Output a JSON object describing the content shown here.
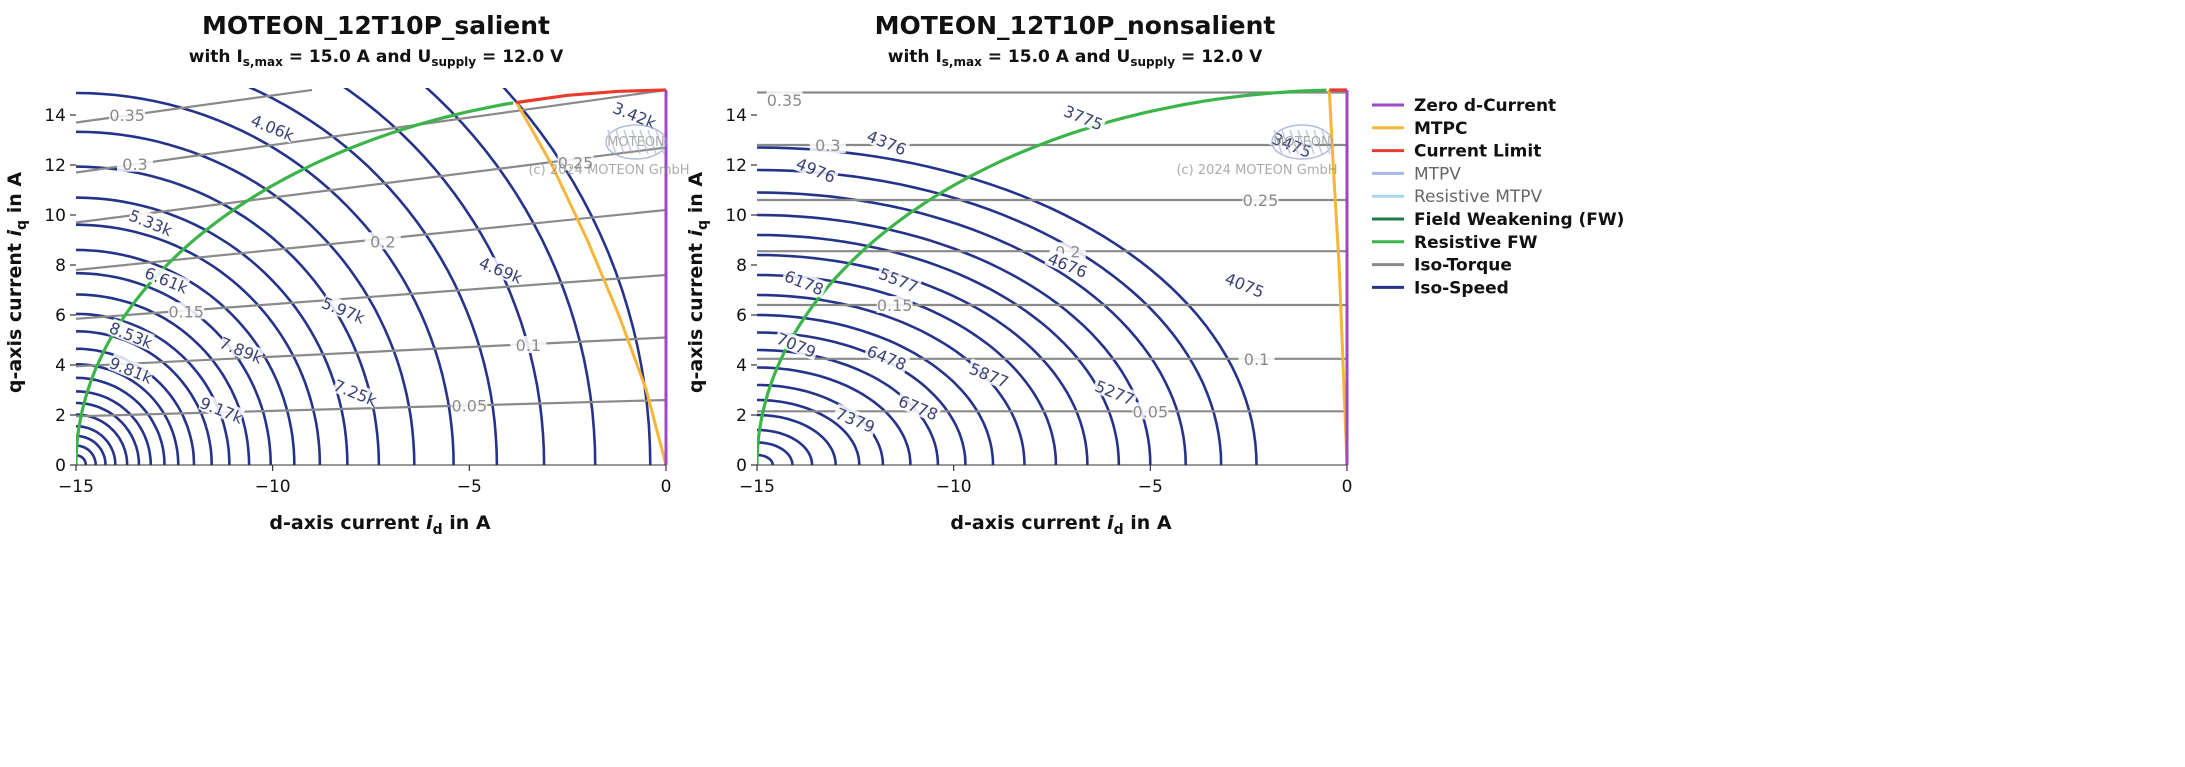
{
  "chart_data": [
    {
      "type": "line",
      "title": "MOTEON_12T10P_salient",
      "subtitle": {
        "pre": "with I",
        "sub1": "s,max",
        "mid": " = 15.0 A and U",
        "sub2": "supply",
        "post": " = 12.0 V"
      },
      "xlabel": {
        "pre": "d-axis current ",
        "var": "i",
        "sub": "d",
        "post": " in A"
      },
      "ylabel": {
        "pre": "q-axis current ",
        "var": "i",
        "sub": "q",
        "post": " in A"
      },
      "xlim": [
        -15,
        0
      ],
      "ylim": [
        0,
        15
      ],
      "xticks": [
        -15,
        -10,
        -5,
        0
      ],
      "xtick_labels": [
        "−15",
        "−10",
        "−5",
        "0"
      ],
      "yticks": [
        0,
        2,
        4,
        6,
        8,
        10,
        12,
        14
      ],
      "watermark": {
        "logo": "MOTEON",
        "copyright": "(c) 2024 MOTEON GmbH"
      },
      "iso_torque": [
        {
          "label": "0.05",
          "points": [
            [
              -15,
              1.95
            ],
            [
              0,
              2.6
            ]
          ],
          "label_at": [
            -5,
            2.38
          ]
        },
        {
          "label": "0.1",
          "points": [
            [
              -15,
              3.95
            ],
            [
              0,
              5.1
            ]
          ],
          "label_at": [
            -3.5,
            4.8
          ]
        },
        {
          "label": "0.15",
          "points": [
            [
              -15,
              5.85
            ],
            [
              0,
              7.6
            ]
          ],
          "label_at": [
            -12.2,
            6.15
          ]
        },
        {
          "label": "0.2",
          "points": [
            [
              -15,
              7.8
            ],
            [
              0,
              10.2
            ]
          ],
          "label_at": [
            -7.2,
            8.95
          ]
        },
        {
          "label": "0.25",
          "points": [
            [
              -15,
              9.7
            ],
            [
              0,
              12.7
            ]
          ],
          "label_at": [
            -2.3,
            12.1
          ]
        },
        {
          "label": "0.3",
          "points": [
            [
              -15,
              11.7
            ],
            [
              0,
              15.0
            ]
          ],
          "label_at": [
            -13.5,
            12.05
          ]
        },
        {
          "label": "0.35",
          "points": [
            [
              -15,
              13.7
            ],
            [
              -9,
              15.0
            ]
          ],
          "label_at": [
            -13.7,
            14.0
          ]
        }
      ],
      "iso_speed": {
        "center_d": -15.0,
        "radii_at_zero_iq": [
          0.25,
          0.5,
          0.75,
          1.0,
          1.3,
          1.6,
          1.9,
          2.25,
          2.6,
          3.0,
          3.45,
          3.9,
          4.4,
          4.95,
          5.55,
          6.2,
          6.9,
          7.7,
          8.6,
          9.6,
          10.7,
          11.9,
          13.2,
          14.6
        ],
        "axis_ratio": 1.55,
        "labels": [
          {
            "text": "9.81k",
            "at": [
              -13.6,
              3.8
            ]
          },
          {
            "text": "9.17k",
            "at": [
              -11.3,
              2.2
            ]
          },
          {
            "text": "8.53k",
            "at": [
              -13.6,
              5.2
            ]
          },
          {
            "text": "7.89k",
            "at": [
              -10.8,
              4.6
            ]
          },
          {
            "text": "7.25k",
            "at": [
              -7.9,
              2.9
            ]
          },
          {
            "text": "6.61k",
            "at": [
              -12.7,
              7.4
            ]
          },
          {
            "text": "5.97k",
            "at": [
              -8.2,
              6.2
            ]
          },
          {
            "text": "5.33k",
            "at": [
              -13.1,
              9.7
            ]
          },
          {
            "text": "4.69k",
            "at": [
              -4.2,
              7.8
            ]
          },
          {
            "text": "4.06k",
            "at": [
              -10.0,
              13.5
            ]
          },
          {
            "text": "3.42k",
            "at": [
              -0.8,
              14.0
            ]
          }
        ]
      },
      "curves": {
        "zero_d_current": {
          "points": [
            [
              0,
              0
            ],
            [
              0,
              15
            ]
          ]
        },
        "mtpc": {
          "points": [
            [
              0,
              0
            ],
            [
              -0.5,
              3.0
            ],
            [
              -1.2,
              6.0
            ],
            [
              -2.0,
              9.0
            ],
            [
              -2.9,
              12.0
            ],
            [
              -3.8,
              14.5
            ]
          ]
        },
        "current_limit": {
          "points": [
            [
              -3.8,
              14.5
            ],
            [
              -2.5,
              14.79
            ],
            [
              -1.2,
              14.95
            ],
            [
              0,
              15.0
            ]
          ]
        },
        "resistive_fw": {
          "radius": 15.0,
          "from_deg": 0,
          "to_deg": 75.3
        }
      }
    },
    {
      "type": "line",
      "title": "MOTEON_12T10P_nonsalient",
      "subtitle": {
        "pre": "with I",
        "sub1": "s,max",
        "mid": " = 15.0 A and U",
        "sub2": "supply",
        "post": " = 12.0 V"
      },
      "xlabel": {
        "pre": "d-axis current ",
        "var": "i",
        "sub": "d",
        "post": " in A"
      },
      "ylabel": {
        "pre": "q-axis current ",
        "var": "i",
        "sub": "q",
        "post": " in A"
      },
      "xlim": [
        -15,
        0
      ],
      "ylim": [
        0,
        15
      ],
      "xticks": [
        -15,
        -10,
        -5,
        0
      ],
      "xtick_labels": [
        "−15",
        "−10",
        "−5",
        "0"
      ],
      "yticks": [
        0,
        2,
        4,
        6,
        8,
        10,
        12,
        14
      ],
      "watermark": {
        "logo": "MOTEON",
        "copyright": "(c) 2024 MOTEON GmbH"
      },
      "iso_torque": [
        {
          "label": "0.05",
          "y": 2.15,
          "label_at": [
            -5.0,
            2.15
          ]
        },
        {
          "label": "0.1",
          "y": 4.25,
          "label_at": [
            -2.3,
            4.25
          ]
        },
        {
          "label": "0.15",
          "y": 6.4,
          "label_at": [
            -11.5,
            6.4
          ]
        },
        {
          "label": "0.2",
          "y": 8.55,
          "label_at": [
            -7.1,
            8.55
          ]
        },
        {
          "label": "0.25",
          "y": 10.6,
          "label_at": [
            -2.2,
            10.6
          ]
        },
        {
          "label": "0.3",
          "y": 12.8,
          "label_at": [
            -13.2,
            12.8
          ]
        },
        {
          "label": "0.35",
          "y": 14.9,
          "label_at": [
            -14.3,
            14.6
          ]
        }
      ],
      "iso_speed": {
        "center_d": -15.0,
        "radii_at_zero_iq": [
          0.4,
          0.9,
          1.4,
          2.0,
          2.6,
          3.2,
          3.9,
          4.6,
          5.3,
          6.0,
          6.8,
          7.6,
          8.4,
          9.2,
          10.0,
          10.9,
          11.8,
          12.7
        ],
        "axis_ratio": 1.0,
        "labels": [
          {
            "text": "7379",
            "at": [
              -12.5,
              1.8
            ]
          },
          {
            "text": "7079",
            "at": [
              -14.0,
              4.8
            ]
          },
          {
            "text": "6778",
            "at": [
              -10.9,
              2.3
            ]
          },
          {
            "text": "6478",
            "at": [
              -11.7,
              4.3
            ]
          },
          {
            "text": "6178",
            "at": [
              -13.8,
              7.3
            ]
          },
          {
            "text": "5877",
            "at": [
              -9.1,
              3.6
            ]
          },
          {
            "text": "5577",
            "at": [
              -11.4,
              7.4
            ]
          },
          {
            "text": "5277",
            "at": [
              -5.9,
              2.9
            ]
          },
          {
            "text": "4976",
            "at": [
              -13.5,
              11.8
            ]
          },
          {
            "text": "4676",
            "at": [
              -7.1,
              8.0
            ]
          },
          {
            "text": "4376",
            "at": [
              -11.7,
              12.9
            ]
          },
          {
            "text": "4075",
            "at": [
              -2.6,
              7.2
            ]
          },
          {
            "text": "3775",
            "at": [
              -6.7,
              13.9
            ]
          },
          {
            "text": "3475",
            "at": [
              -1.4,
              12.8
            ]
          }
        ]
      },
      "curves": {
        "zero_d_current": {
          "points": [
            [
              0,
              0
            ],
            [
              0,
              15
            ]
          ]
        },
        "mtpc": {
          "points": [
            [
              0,
              0
            ],
            [
              -0.1,
              4.0
            ],
            [
              -0.2,
              8.0
            ],
            [
              -0.35,
              12.0
            ],
            [
              -0.45,
              15.0
            ]
          ]
        },
        "current_limit": {
          "points": [
            [
              -0.45,
              15.0
            ],
            [
              0,
              15.0
            ]
          ]
        },
        "resistive_fw": {
          "radius": 15.0,
          "from_deg": 0,
          "to_deg": 88.3
        }
      }
    }
  ],
  "legend": {
    "position": "right",
    "items": [
      {
        "label": "Zero d-Current",
        "color": "#9b49c7",
        "faint": false
      },
      {
        "label": "MTPC",
        "color": "#f5b63a",
        "faint": false
      },
      {
        "label": "Current Limit",
        "color": "#e83b2d",
        "faint": false
      },
      {
        "label": "MTPV",
        "color": "#a9b6e8",
        "faint": true
      },
      {
        "label": "Resistive MTPV",
        "color": "#a9d7ee",
        "faint": true
      },
      {
        "label": "Field Weakening (FW)",
        "color": "#1f7a4a",
        "faint": false
      },
      {
        "label": "Resistive FW",
        "color": "#3bb44a",
        "faint": false
      },
      {
        "label": "Iso-Torque",
        "color": "#8a8a8a",
        "faint": false
      },
      {
        "label": "Iso-Speed",
        "color": "#26338a",
        "faint": false
      }
    ]
  },
  "colors": {
    "zero_d": "#9b49c7",
    "mtpc": "#f5b63a",
    "current_limit": "#e83b2d",
    "resistive_fw": "#3bb44a",
    "iso_torque": "#8a8a8a",
    "iso_speed": "#26338a",
    "iso_torque_label": "#8a8a8a",
    "iso_speed_label": "#3a4275"
  }
}
